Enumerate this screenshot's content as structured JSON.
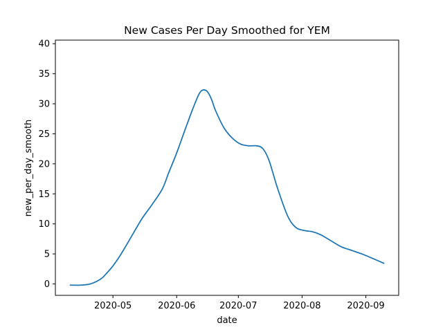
{
  "chart_data": {
    "type": "line",
    "title": "New Cases Per Day Smoothed for YEM",
    "xlabel": "date",
    "ylabel": "new_per_day_smooth",
    "x_tick_labels": [
      "2020-05",
      "2020-06",
      "2020-07",
      "2020-08",
      "2020-09"
    ],
    "x_ticks": [
      "2020-05-01",
      "2020-06-01",
      "2020-07-01",
      "2020-08-01",
      "2020-09-01"
    ],
    "xlim": [
      "2020-04-03",
      "2020-09-17"
    ],
    "y_ticks": [
      0,
      5,
      10,
      15,
      20,
      25,
      30,
      35,
      40
    ],
    "y_tick_labels": [
      "0",
      "5",
      "10",
      "15",
      "20",
      "25",
      "30",
      "35",
      "40"
    ],
    "ylim": [
      -1.9,
      40.6
    ],
    "grid": false,
    "line_color": "#1f77b4",
    "series": [
      {
        "x": [
          "2020-04-10",
          "2020-04-15",
          "2020-04-20",
          "2020-04-25",
          "2020-04-28",
          "2020-05-01",
          "2020-05-05",
          "2020-05-10",
          "2020-05-15",
          "2020-05-20",
          "2020-05-25",
          "2020-05-28",
          "2020-06-01",
          "2020-06-05",
          "2020-06-09",
          "2020-06-12",
          "2020-06-14",
          "2020-06-16",
          "2020-06-18",
          "2020-06-20",
          "2020-06-24",
          "2020-06-28",
          "2020-07-02",
          "2020-07-06",
          "2020-07-10",
          "2020-07-13",
          "2020-07-16",
          "2020-07-20",
          "2020-07-25",
          "2020-07-29",
          "2020-08-02",
          "2020-08-06",
          "2020-08-10",
          "2020-08-15",
          "2020-08-20",
          "2020-08-25",
          "2020-08-30",
          "2020-09-04",
          "2020-09-10"
        ],
        "values": [
          -0.2,
          -0.2,
          0.0,
          0.8,
          1.8,
          3.0,
          5.0,
          7.9,
          10.8,
          13.2,
          15.8,
          18.4,
          21.8,
          25.6,
          29.3,
          31.7,
          32.3,
          32.0,
          30.7,
          28.8,
          26.0,
          24.3,
          23.3,
          23.0,
          23.0,
          22.5,
          20.5,
          16.0,
          11.3,
          9.4,
          8.9,
          8.7,
          8.2,
          7.2,
          6.2,
          5.6,
          5.0,
          4.3,
          3.4
        ]
      }
    ]
  }
}
